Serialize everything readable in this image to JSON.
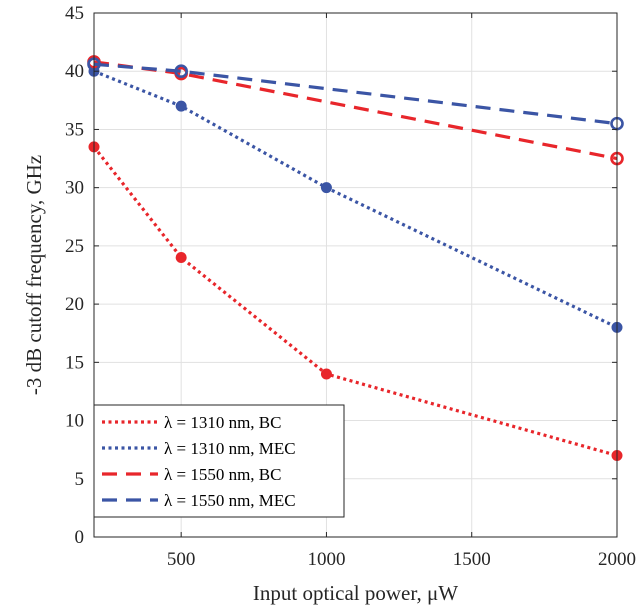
{
  "chart_data": {
    "type": "line",
    "xlabel": "Input optical power, μW",
    "ylabel": "-3 dB cutoff frequency, GHz",
    "xlim": [
      200,
      2000
    ],
    "ylim": [
      0,
      45
    ],
    "xticks": [
      500,
      1000,
      1500,
      2000
    ],
    "yticks": [
      0,
      5,
      10,
      15,
      20,
      25,
      30,
      35,
      40,
      45
    ],
    "grid": true,
    "legend_position": "bottom-left",
    "series": [
      {
        "name": "λ = 1310 nm, BC",
        "color": "#e8262b",
        "style": "dotted",
        "marker": "filled-circle",
        "x": [
          200,
          500,
          1000,
          2000
        ],
        "y": [
          33.5,
          24,
          14,
          7
        ]
      },
      {
        "name": "λ = 1310 nm, MEC",
        "color": "#3b55a5",
        "style": "dotted",
        "marker": "filled-circle",
        "x": [
          200,
          500,
          1000,
          2000
        ],
        "y": [
          40,
          37,
          30,
          18
        ]
      },
      {
        "name": "λ = 1550 nm, BC",
        "color": "#e8262b",
        "style": "dashed",
        "marker": "open-circle",
        "x": [
          200,
          500,
          2000
        ],
        "y": [
          40.8,
          39.8,
          32.5
        ]
      },
      {
        "name": "λ = 1550 nm, MEC",
        "color": "#3b55a5",
        "style": "dashed",
        "marker": "open-circle",
        "x": [
          200,
          500,
          2000
        ],
        "y": [
          40.6,
          40,
          35.5
        ]
      }
    ]
  }
}
